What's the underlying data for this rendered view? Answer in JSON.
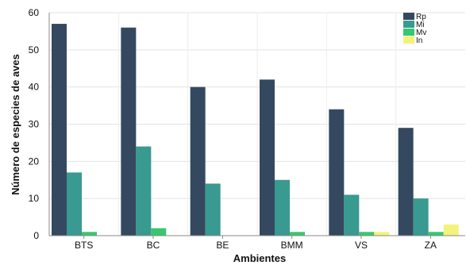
{
  "chart_data": {
    "type": "bar",
    "xlabel": "Ambientes",
    "ylabel": "Número de especies de aves",
    "categories": [
      "BTS",
      "BC",
      "BE",
      "BMM",
      "VS",
      "ZA"
    ],
    "ylim": [
      0,
      60
    ],
    "yticks": [
      0,
      10,
      20,
      30,
      40,
      50,
      60
    ],
    "grid": true,
    "legend_position": "top-right",
    "series": [
      {
        "name": "Rp",
        "color": "#34495f",
        "values": [
          57,
          56,
          40,
          42,
          34,
          29
        ]
      },
      {
        "name": "Mi",
        "color": "#389a90",
        "values": [
          17,
          24,
          14,
          15,
          11,
          10
        ]
      },
      {
        "name": "Mv",
        "color": "#36c86e",
        "values": [
          1,
          2,
          0,
          1,
          1,
          1
        ]
      },
      {
        "name": "In",
        "color": "#f3f37a",
        "values": [
          0,
          0,
          0,
          0,
          1,
          3
        ]
      }
    ]
  }
}
